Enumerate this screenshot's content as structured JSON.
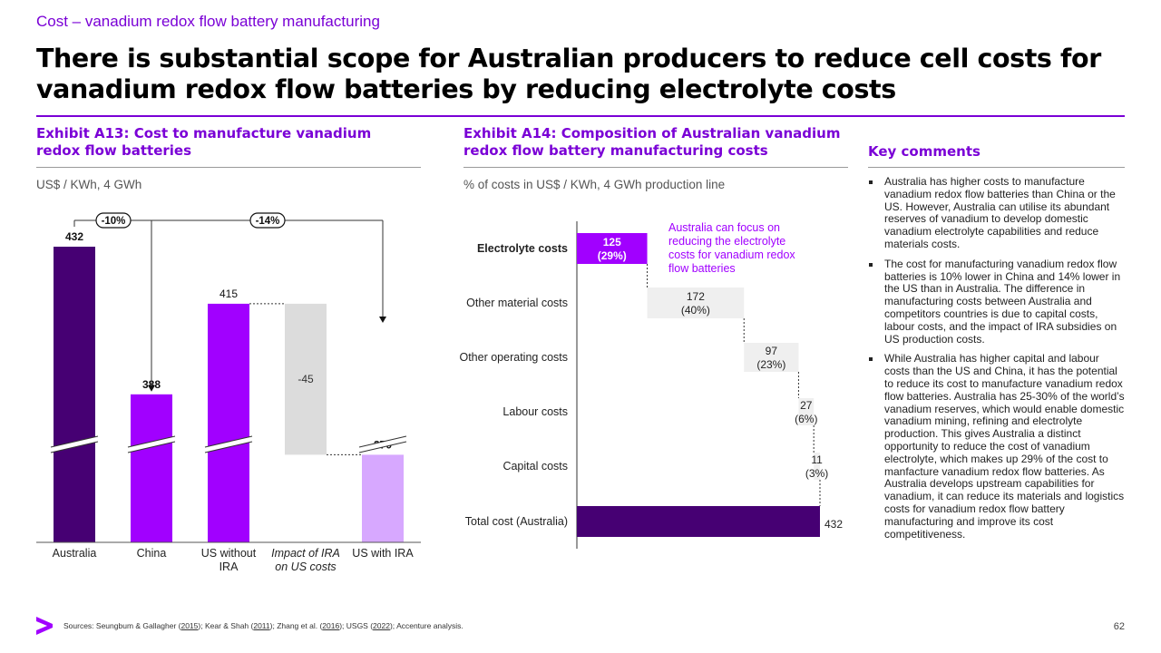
{
  "header": {
    "kicker": "Cost – vanadium redox flow battery manufacturing",
    "title": "There is substantial scope for Australian producers to reduce cell costs for vanadium redox flow batteries by reducing electrolyte costs"
  },
  "exhibit_a13": {
    "title": "Exhibit A13: Cost to manufacture vanadium redox flow batteries",
    "subtitle": "US$ / KWh, 4 GWh"
  },
  "exhibit_a14": {
    "title": "Exhibit A14: Composition of Australian vanadium redox flow battery manufacturing costs",
    "subtitle": "% of costs in US$ / KWh, 4 GWh production line",
    "annotation": [
      "Australia can focus on",
      "reducing the electrolyte",
      "costs for vanadium redox",
      "flow batteries"
    ]
  },
  "key_comments": {
    "title": "Key comments",
    "items": [
      "Australia has higher costs to manufacture vanadium redox flow batteries than China or the US. However, Australia can utilise its abundant reserves of vanadium to develop domestic vanadium electrolyte capabilities and reduce materials costs.",
      "The cost for manufacturing vanadium redox flow batteries is 10% lower in China and 14% lower in the US than in Australia. The difference in manufacturing costs between Australia and competitors countries is due to capital costs, labour costs, and the impact of IRA subsidies on US production costs.",
      "While Australia has higher capital and labour costs than the US and China, it has the potential to reduce its cost to manufacture vanadium redox flow batteries. Australia has 25-30% of the world’s vanadium reserves, which would enable domestic vanadium mining, refining and electrolyte production. This gives Australia a distinct opportunity to reduce the cost of vanadium electrolyte, which makes up 29% of the cost to manfacture vanadium redox flow batteries. As Australia develops upstream capabilities for vanadium, it can reduce its materials and logistics costs for vanadium redox flow battery manufacturing and improve its cost competitiveness."
    ]
  },
  "footer": {
    "sources_prefix": "Sources: ",
    "sources": [
      {
        "author": "Seungbum & Gallagher (",
        "year": "2015",
        "end": "); "
      },
      {
        "author": "Kear & Shah (",
        "year": "2011",
        "end": "); "
      },
      {
        "author": "Zhang et al. (",
        "year": "2016",
        "end": "); "
      },
      {
        "author": "USGS (",
        "year": "2022",
        "end": "); "
      }
    ],
    "sources_suffix": "Accenture analysis.",
    "page_number": "62"
  },
  "colors": {
    "accent": "#7a00d6",
    "dark_purple": "#460073",
    "bright_purple": "#a100ff",
    "light_purple": "#d7a8ff",
    "grey_bar": "#dcdcdc",
    "light_grey_bar": "#efefef"
  },
  "chart_data": [
    {
      "type": "bar",
      "subtype": "waterfall",
      "categories": [
        "Australia",
        "China",
        "US without IRA",
        "Impact of IRA on US costs",
        "US with IRA"
      ],
      "values": [
        432,
        388,
        415,
        -45,
        370
      ],
      "value_labels": [
        "432",
        "388",
        "415",
        "-45",
        "370"
      ],
      "axis_break": true,
      "comparisons": [
        {
          "from": "Australia",
          "to": "China",
          "label": "-10%"
        },
        {
          "from": "Australia",
          "to": "US with IRA",
          "label": "-14%"
        }
      ],
      "colors": [
        "#460073",
        "#a100ff",
        "#a100ff",
        "#dcdcdc",
        "#d7a8ff"
      ]
    },
    {
      "type": "bar",
      "subtype": "horizontal-waterfall",
      "categories": [
        "Electrolyte costs",
        "Other material costs",
        "Other operating costs",
        "Labour costs",
        "Capital costs",
        "Total cost (Australia)"
      ],
      "values": [
        125,
        172,
        97,
        27,
        11,
        432
      ],
      "shares": [
        "(29%)",
        "(40%)",
        "(23%)",
        "(6%)",
        "(3%)",
        ""
      ],
      "value_labels": [
        "125",
        "172",
        "97",
        "27",
        "11",
        "432"
      ],
      "highlight": "Electrolyte costs",
      "xlim": [
        0,
        432
      ]
    }
  ]
}
